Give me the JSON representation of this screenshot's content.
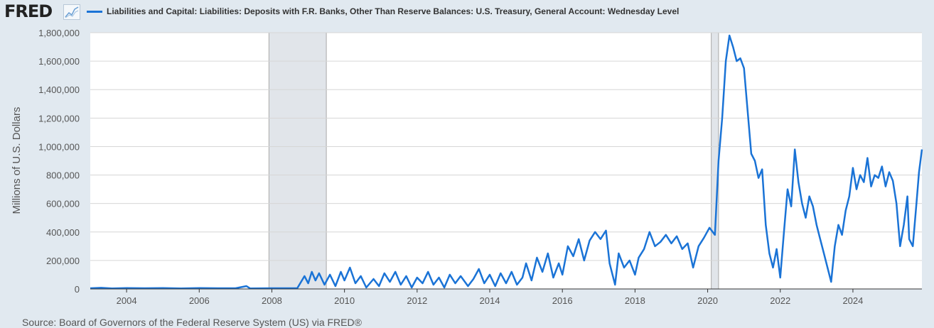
{
  "brand": "FRED",
  "source": "Source: Board of Governors of the Federal Reserve System (US) via FRED®",
  "chart_data": {
    "type": "line",
    "title": "Liabilities and Capital: Liabilities: Deposits with F.R. Banks, Other Than Reserve Balances: U.S. Treasury, General Account: Wednesday Level",
    "xlabel": "",
    "ylabel": "Millions of U.S. Dollars",
    "xlim": [
      2003.0,
      2025.9
    ],
    "ylim": [
      0,
      1800000
    ],
    "x_ticks": [
      "2004",
      "2006",
      "2008",
      "2010",
      "2012",
      "2014",
      "2016",
      "2018",
      "2020",
      "2022",
      "2024"
    ],
    "y_ticks": [
      "0",
      "200,000",
      "400,000",
      "600,000",
      "800,000",
      "1,000,000",
      "1,200,000",
      "1,400,000",
      "1,600,000",
      "1,800,000"
    ],
    "grid": true,
    "line_color": "#1a73d6",
    "recessions": [
      [
        2007.92,
        2009.5
      ],
      [
        2020.1,
        2020.3
      ]
    ],
    "series": [
      {
        "name": "Liabilities and Capital: Liabilities: Deposits with F.R. Banks, Other Than Reserve Balances: U.S. Treasury, General Account: Wednesday Level",
        "points": [
          [
            2003.0,
            5000
          ],
          [
            2003.3,
            8000
          ],
          [
            2003.6,
            4000
          ],
          [
            2004.0,
            6000
          ],
          [
            2004.5,
            5000
          ],
          [
            2005.0,
            6000
          ],
          [
            2005.5,
            4000
          ],
          [
            2006.0,
            6000
          ],
          [
            2006.5,
            5000
          ],
          [
            2007.0,
            5000
          ],
          [
            2007.3,
            20000
          ],
          [
            2007.4,
            4000
          ],
          [
            2008.0,
            5000
          ],
          [
            2008.7,
            5000
          ],
          [
            2008.9,
            90000
          ],
          [
            2009.0,
            40000
          ],
          [
            2009.1,
            120000
          ],
          [
            2009.2,
            60000
          ],
          [
            2009.3,
            110000
          ],
          [
            2009.45,
            30000
          ],
          [
            2009.6,
            100000
          ],
          [
            2009.75,
            20000
          ],
          [
            2009.9,
            120000
          ],
          [
            2010.0,
            60000
          ],
          [
            2010.15,
            150000
          ],
          [
            2010.3,
            40000
          ],
          [
            2010.45,
            90000
          ],
          [
            2010.6,
            10000
          ],
          [
            2010.8,
            70000
          ],
          [
            2010.95,
            20000
          ],
          [
            2011.1,
            110000
          ],
          [
            2011.25,
            50000
          ],
          [
            2011.4,
            120000
          ],
          [
            2011.55,
            30000
          ],
          [
            2011.7,
            90000
          ],
          [
            2011.85,
            10000
          ],
          [
            2012.0,
            80000
          ],
          [
            2012.15,
            40000
          ],
          [
            2012.3,
            120000
          ],
          [
            2012.45,
            30000
          ],
          [
            2012.6,
            80000
          ],
          [
            2012.75,
            10000
          ],
          [
            2012.9,
            100000
          ],
          [
            2013.05,
            40000
          ],
          [
            2013.2,
            90000
          ],
          [
            2013.4,
            20000
          ],
          [
            2013.55,
            70000
          ],
          [
            2013.7,
            140000
          ],
          [
            2013.85,
            40000
          ],
          [
            2014.0,
            100000
          ],
          [
            2014.15,
            20000
          ],
          [
            2014.3,
            110000
          ],
          [
            2014.45,
            40000
          ],
          [
            2014.6,
            120000
          ],
          [
            2014.75,
            30000
          ],
          [
            2014.9,
            80000
          ],
          [
            2015.0,
            180000
          ],
          [
            2015.15,
            60000
          ],
          [
            2015.3,
            220000
          ],
          [
            2015.45,
            120000
          ],
          [
            2015.6,
            250000
          ],
          [
            2015.75,
            80000
          ],
          [
            2015.9,
            180000
          ],
          [
            2016.0,
            100000
          ],
          [
            2016.15,
            300000
          ],
          [
            2016.3,
            230000
          ],
          [
            2016.45,
            350000
          ],
          [
            2016.6,
            200000
          ],
          [
            2016.75,
            340000
          ],
          [
            2016.9,
            400000
          ],
          [
            2017.05,
            350000
          ],
          [
            2017.2,
            410000
          ],
          [
            2017.3,
            180000
          ],
          [
            2017.45,
            30000
          ],
          [
            2017.55,
            250000
          ],
          [
            2017.7,
            150000
          ],
          [
            2017.85,
            200000
          ],
          [
            2018.0,
            100000
          ],
          [
            2018.1,
            220000
          ],
          [
            2018.25,
            280000
          ],
          [
            2018.4,
            400000
          ],
          [
            2018.55,
            300000
          ],
          [
            2018.7,
            330000
          ],
          [
            2018.85,
            380000
          ],
          [
            2019.0,
            320000
          ],
          [
            2019.15,
            370000
          ],
          [
            2019.3,
            280000
          ],
          [
            2019.45,
            320000
          ],
          [
            2019.6,
            150000
          ],
          [
            2019.75,
            300000
          ],
          [
            2019.9,
            360000
          ],
          [
            2020.05,
            430000
          ],
          [
            2020.2,
            380000
          ],
          [
            2020.3,
            900000
          ],
          [
            2020.4,
            1200000
          ],
          [
            2020.5,
            1600000
          ],
          [
            2020.6,
            1780000
          ],
          [
            2020.7,
            1700000
          ],
          [
            2020.8,
            1600000
          ],
          [
            2020.9,
            1620000
          ],
          [
            2021.0,
            1550000
          ],
          [
            2021.1,
            1250000
          ],
          [
            2021.2,
            950000
          ],
          [
            2021.3,
            900000
          ],
          [
            2021.4,
            780000
          ],
          [
            2021.5,
            840000
          ],
          [
            2021.6,
            450000
          ],
          [
            2021.7,
            250000
          ],
          [
            2021.8,
            150000
          ],
          [
            2021.9,
            280000
          ],
          [
            2022.0,
            80000
          ],
          [
            2022.1,
            400000
          ],
          [
            2022.2,
            700000
          ],
          [
            2022.3,
            580000
          ],
          [
            2022.4,
            980000
          ],
          [
            2022.5,
            750000
          ],
          [
            2022.6,
            600000
          ],
          [
            2022.7,
            500000
          ],
          [
            2022.8,
            650000
          ],
          [
            2022.9,
            580000
          ],
          [
            2023.0,
            450000
          ],
          [
            2023.1,
            350000
          ],
          [
            2023.2,
            250000
          ],
          [
            2023.3,
            150000
          ],
          [
            2023.4,
            50000
          ],
          [
            2023.5,
            300000
          ],
          [
            2023.6,
            450000
          ],
          [
            2023.7,
            380000
          ],
          [
            2023.8,
            550000
          ],
          [
            2023.9,
            650000
          ],
          [
            2024.0,
            850000
          ],
          [
            2024.1,
            700000
          ],
          [
            2024.2,
            800000
          ],
          [
            2024.3,
            750000
          ],
          [
            2024.4,
            920000
          ],
          [
            2024.5,
            720000
          ],
          [
            2024.6,
            800000
          ],
          [
            2024.7,
            780000
          ],
          [
            2024.8,
            860000
          ],
          [
            2024.9,
            720000
          ],
          [
            2025.0,
            820000
          ],
          [
            2025.1,
            760000
          ],
          [
            2025.2,
            600000
          ],
          [
            2025.3,
            300000
          ],
          [
            2025.4,
            450000
          ],
          [
            2025.5,
            650000
          ],
          [
            2025.55,
            350000
          ],
          [
            2025.65,
            300000
          ],
          [
            2025.75,
            600000
          ],
          [
            2025.82,
            820000
          ],
          [
            2025.9,
            980000
          ]
        ]
      }
    ]
  }
}
